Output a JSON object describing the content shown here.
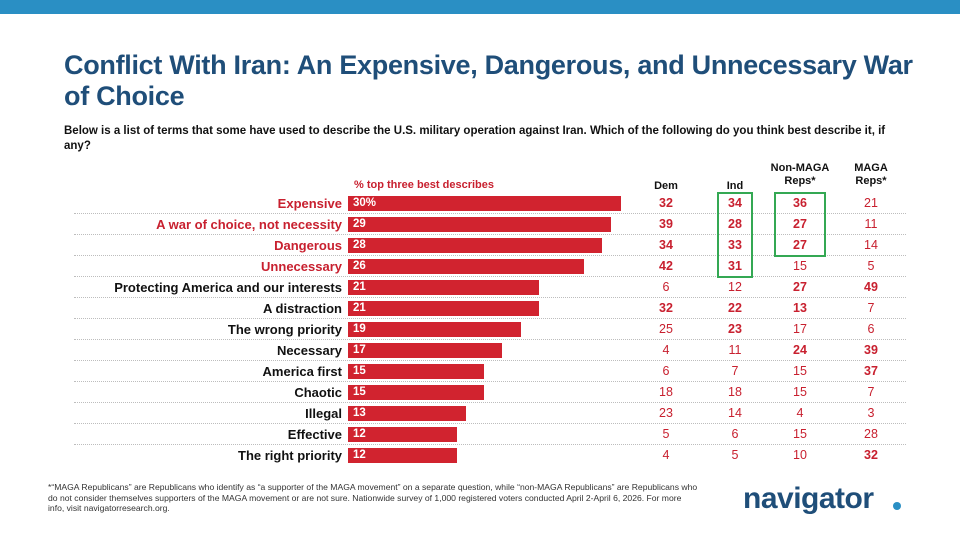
{
  "title": "Conflict With Iran: An Expensive, Dangerous, and Unnecessary War of Choice",
  "subtitle": "Below is a list of terms that some have used to describe the U.S. military operation against Iran. Which of the following do you think best describe it, if any?",
  "footnote": "*“MAGA Republicans” are Republicans who identify as “a supporter of the MAGA movement” on a separate question, while “non-MAGA Republicans” are Republicans who do not consider themselves supporters of the MAGA movement or are not sure. Nationwide survey of 1,000 registered voters conducted April 2-April 6, 2026. For more info, visit navigatorresearch.org.",
  "logo": "navigator",
  "colors": {
    "bar": "#d1232f",
    "title": "#1f4e79",
    "highlight": "#c8202f",
    "box": "#34a853",
    "topbar": "#2a8fc4"
  },
  "chart_data": {
    "type": "bar",
    "orientation": "horizontal",
    "series_label": "% top three best describes",
    "categories": [
      "Expensive",
      "A war of choice, not necessity",
      "Dangerous",
      "Unnecessary",
      "Protecting America and our interests",
      "A distraction",
      "The wrong priority",
      "Necessary",
      "America first",
      "Chaotic",
      "Illegal",
      "Effective",
      "The right priority"
    ],
    "category_color": [
      "red",
      "red",
      "red",
      "red",
      "black",
      "black",
      "black",
      "black",
      "black",
      "black",
      "black",
      "black",
      "black"
    ],
    "values": [
      30,
      29,
      28,
      26,
      21,
      21,
      19,
      17,
      15,
      15,
      13,
      12,
      12
    ],
    "value_labels": [
      "30%",
      "29",
      "28",
      "26",
      "21",
      "21",
      "19",
      "17",
      "15",
      "15",
      "13",
      "12",
      "12"
    ],
    "xlim": [
      0,
      31
    ],
    "columns": [
      "Dem",
      "Ind",
      "Non-MAGA Reps*",
      "MAGA Reps*"
    ],
    "table": [
      [
        32,
        34,
        36,
        21
      ],
      [
        39,
        28,
        27,
        11
      ],
      [
        34,
        33,
        27,
        14
      ],
      [
        42,
        31,
        15,
        5
      ],
      [
        6,
        12,
        27,
        49
      ],
      [
        32,
        22,
        13,
        7
      ],
      [
        25,
        23,
        17,
        6
      ],
      [
        4,
        11,
        24,
        39
      ],
      [
        6,
        7,
        15,
        37
      ],
      [
        18,
        18,
        15,
        7
      ],
      [
        23,
        14,
        4,
        3
      ],
      [
        5,
        6,
        15,
        28
      ],
      [
        4,
        5,
        10,
        32
      ]
    ],
    "bold": [
      [
        true,
        true,
        true,
        false
      ],
      [
        true,
        true,
        true,
        false
      ],
      [
        true,
        true,
        true,
        false
      ],
      [
        true,
        true,
        false,
        false
      ],
      [
        false,
        false,
        true,
        true
      ],
      [
        true,
        true,
        true,
        false
      ],
      [
        false,
        true,
        false,
        false
      ],
      [
        false,
        false,
        true,
        true
      ],
      [
        false,
        false,
        false,
        true
      ],
      [
        false,
        false,
        false,
        false
      ],
      [
        false,
        false,
        false,
        false
      ],
      [
        false,
        false,
        false,
        false
      ],
      [
        false,
        false,
        false,
        true
      ]
    ],
    "boxed": {
      "Ind": [
        0,
        3
      ],
      "Non-MAGA Reps*": [
        0,
        2
      ]
    }
  }
}
